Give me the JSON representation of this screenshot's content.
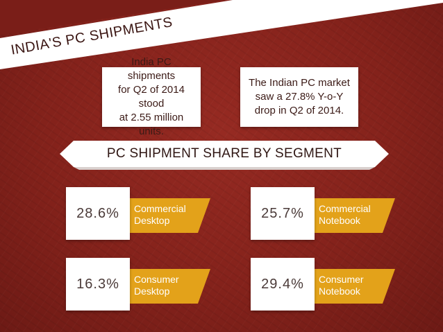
{
  "header": {
    "title": "INDIA'S PC SHIPMENTS"
  },
  "facts": [
    {
      "line1": "India PC shipments",
      "line2": "for Q2 of 2014 stood",
      "line3": "at 2.55 million units."
    },
    {
      "line1": "The Indian PC market",
      "line2": "saw a 27.8% Y-o-Y",
      "line3": "drop in Q2 of 2014."
    }
  ],
  "section": {
    "heading": "PC SHIPMENT SHARE BY SEGMENT"
  },
  "segments": [
    {
      "value": "28.6%",
      "label_line1": "Commercial",
      "label_line2": "Desktop"
    },
    {
      "value": "25.7%",
      "label_line1": "Commercial",
      "label_line2": "Notebook"
    },
    {
      "value": "16.3%",
      "label_line1": "Consumer",
      "label_line2": "Desktop"
    },
    {
      "value": "29.4%",
      "label_line1": "Consumer",
      "label_line2": "Notebook"
    }
  ],
  "colors": {
    "background": "#84221b",
    "banner": "#ffffff",
    "accent": "#e3a21a",
    "text_dark": "#3b1a16"
  }
}
